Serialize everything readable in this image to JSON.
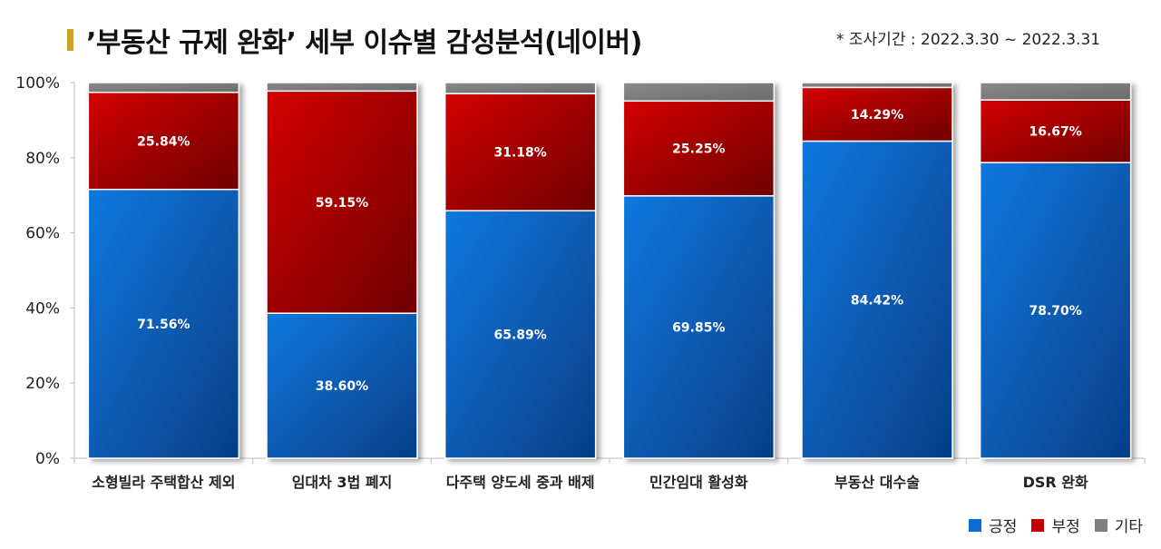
{
  "header": {
    "title": "’부동산 규제 완화’ 세부 이슈별 감성분석(네이버)",
    "period": "* 조사기간 : 2022.3.30 ~ 2022.3.31",
    "accent_color": "#c9a227"
  },
  "chart_data": {
    "type": "bar",
    "stacked": true,
    "percent_stacked": true,
    "title": "’부동산 규제 완화’ 세부 이슈별 감성분석(네이버)",
    "xlabel": "",
    "ylabel": "",
    "ylim": [
      0,
      100
    ],
    "yticks": [
      "0%",
      "20%",
      "40%",
      "60%",
      "80%",
      "100%"
    ],
    "categories": [
      "소형빌라 주택합산 제외",
      "임대차 3법 폐지",
      "다주택 양도세 중과 배제",
      "민간임대 활성화",
      "부동산 대수술",
      "DSR 완화"
    ],
    "series": [
      {
        "name": "긍정",
        "values": [
          71.56,
          38.6,
          65.89,
          69.85,
          84.42,
          78.7
        ],
        "labels": [
          "71.56%",
          "38.60%",
          "65.89%",
          "69.85%",
          "84.42%",
          "78.70%"
        ],
        "color": "#0b6fd1"
      },
      {
        "name": "부정",
        "values": [
          25.84,
          59.15,
          31.18,
          25.25,
          14.29,
          16.67
        ],
        "labels": [
          "25.84%",
          "59.15%",
          "31.18%",
          "25.25%",
          "14.29%",
          "16.67%"
        ],
        "color": "#c00000"
      },
      {
        "name": "기타",
        "values": [
          2.6,
          2.25,
          2.93,
          4.9,
          1.29,
          4.63
        ],
        "color": "#808080"
      }
    ],
    "legend_position": "bottom-right",
    "grid": false
  }
}
